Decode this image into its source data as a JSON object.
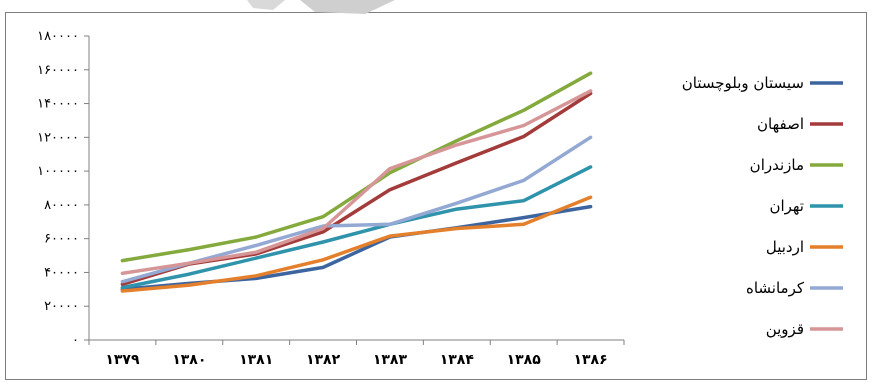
{
  "chart_data": {
    "type": "line",
    "title": "",
    "xlabel": "",
    "ylabel": "",
    "categories": [
      "۱۳۷۹",
      "۱۳۸۰",
      "۱۳۸۱",
      "۱۳۸۲",
      "۱۳۸۳",
      "۱۳۸۴",
      "۱۳۸۵",
      "۱۳۸۶"
    ],
    "ylim": [
      0,
      180000
    ],
    "yticks": [
      0,
      20000,
      40000,
      60000,
      80000,
      100000,
      120000,
      140000,
      160000,
      180000
    ],
    "ytick_labels": [
      "۰",
      "۲۰۰۰۰",
      "۴۰۰۰۰",
      "۶۰۰۰۰",
      "۸۰۰۰۰",
      "۱۰۰۰۰۰",
      "۱۲۰۰۰۰",
      "۱۴۰۰۰۰",
      "۱۶۰۰۰۰",
      "۱۸۰۰۰۰"
    ],
    "grid": false,
    "legend_position": "right",
    "series": [
      {
        "name": "سیستان وبلوچستان",
        "color": "#3c65a0",
        "values": [
          30000,
          33500,
          36500,
          43000,
          61000,
          66500,
          72500,
          79000
        ]
      },
      {
        "name": "اصفهان",
        "color": "#a23b39",
        "values": [
          33000,
          45000,
          51000,
          64000,
          89000,
          105000,
          120500,
          146000
        ]
      },
      {
        "name": "مازندران",
        "color": "#84aa3d",
        "values": [
          47000,
          53500,
          61000,
          73000,
          99000,
          118000,
          136000,
          158000
        ]
      },
      {
        "name": "تهران",
        "color": "#2f93ac",
        "values": [
          31000,
          39000,
          48500,
          58000,
          68500,
          77500,
          82500,
          102500
        ]
      },
      {
        "name": "اردبیل",
        "color": "#e47f2b",
        "values": [
          29000,
          32500,
          38000,
          47500,
          61500,
          66000,
          68500,
          84500
        ]
      },
      {
        "name": "کرمانشاه",
        "color": "#93a9d3",
        "values": [
          34500,
          45500,
          56000,
          67500,
          68500,
          81000,
          94500,
          120000
        ]
      },
      {
        "name": "قزوین",
        "color": "#d69597",
        "values": [
          39500,
          45500,
          52000,
          66000,
          101500,
          115500,
          127000,
          147500
        ]
      }
    ]
  }
}
